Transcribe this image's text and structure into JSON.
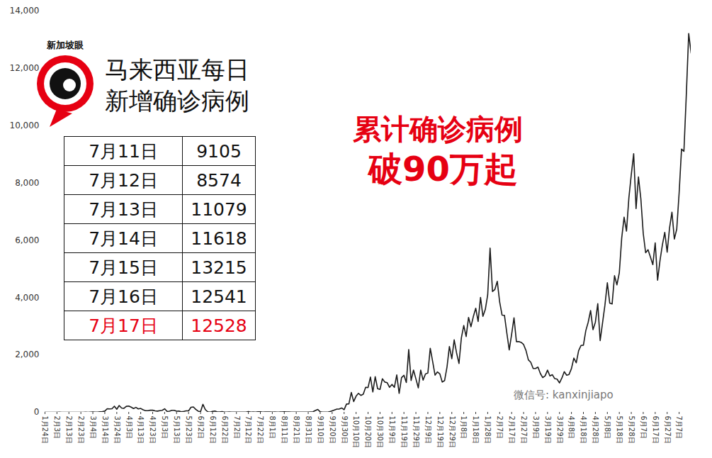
{
  "chart_data": {
    "type": "line",
    "title": "马来西亚每日新增确诊病例",
    "annotations": [
      "累计确诊病例",
      "破90万起"
    ],
    "logo": "新加坡眼",
    "watermark": "微信号: kanxinjiapo",
    "color": "#1a1a1a",
    "grid": false,
    "ylim": [
      0,
      14000
    ],
    "yticks": [
      0,
      2000,
      4000,
      6000,
      8000,
      10000,
      12000,
      14000
    ],
    "categories": [
      "1月24日",
      null,
      null,
      null,
      null,
      "2月3日",
      null,
      null,
      null,
      null,
      "2月13日",
      null,
      null,
      null,
      null,
      "2月23日",
      null,
      null,
      null,
      null,
      "3月4日",
      null,
      null,
      null,
      null,
      "3月14日",
      null,
      null,
      null,
      null,
      "3月24日",
      null,
      null,
      null,
      null,
      "4月3日",
      null,
      null,
      null,
      null,
      "4月13日",
      null,
      null,
      null,
      null,
      "4月23日",
      null,
      null,
      null,
      null,
      "5月3日",
      null,
      null,
      null,
      null,
      "5月13日",
      null,
      null,
      null,
      null,
      "5月23日",
      null,
      null,
      null,
      null,
      "6月2日",
      null,
      null,
      null,
      null,
      "6月12日",
      null,
      null,
      null,
      null,
      "6月22日",
      null,
      null,
      null,
      null,
      "7月2日",
      null,
      null,
      null,
      null,
      "7月12日",
      null,
      null,
      null,
      null,
      "7月22日",
      null,
      null,
      null,
      null,
      "8月1日",
      null,
      null,
      null,
      null,
      "8月11日",
      null,
      null,
      null,
      null,
      "8月21日",
      null,
      null,
      null,
      null,
      "8月31日",
      null,
      null,
      null,
      null,
      "9月10日",
      null,
      null,
      null,
      null,
      "9月20日",
      null,
      null,
      null,
      null,
      "9月30日",
      null,
      null,
      null,
      null,
      "10月10日",
      null,
      null,
      null,
      null,
      "10月20日",
      null,
      null,
      null,
      null,
      "10月30日",
      null,
      null,
      null,
      null,
      "11月9日",
      null,
      null,
      null,
      null,
      "11月19日",
      null,
      null,
      null,
      null,
      "11月29日",
      null,
      null,
      null,
      null,
      "12月9日",
      null,
      null,
      null,
      null,
      "12月19日",
      null,
      null,
      null,
      null,
      "12月29日",
      null,
      null,
      null,
      null,
      "1月8日",
      null,
      null,
      null,
      null,
      "1月18日",
      null,
      null,
      null,
      null,
      "1月28日",
      null,
      null,
      null,
      null,
      "2月7日",
      null,
      null,
      null,
      null,
      "2月17日",
      null,
      null,
      null,
      null,
      "2月27日",
      null,
      null,
      null,
      null,
      "3月9日",
      null,
      null,
      null,
      null,
      "3月19日",
      null,
      null,
      null,
      null,
      "3月29日",
      null,
      null,
      null,
      null,
      "4月8日",
      null,
      null,
      null,
      null,
      "4月18日",
      null,
      null,
      null,
      null,
      "4月28日",
      null,
      null,
      null,
      null,
      "5月8日",
      null,
      null,
      null,
      null,
      "5月18日",
      null,
      null,
      null,
      null,
      "5月28日",
      null,
      null,
      null,
      null,
      "6月7日",
      null,
      null,
      null,
      null,
      "6月17日",
      null,
      null,
      null,
      null,
      "6月27日",
      null,
      null,
      null,
      null,
      "7月7日",
      null,
      null,
      null,
      null,
      null
    ],
    "values": [
      0,
      0,
      1,
      0,
      0,
      0,
      2,
      0,
      0,
      0,
      1,
      0,
      0,
      0,
      0,
      0,
      0,
      3,
      1,
      7,
      14,
      5,
      7,
      20,
      26,
      41,
      125,
      117,
      123,
      212,
      106,
      235,
      150,
      140,
      208,
      217,
      179,
      131,
      170,
      118,
      134,
      85,
      54,
      57,
      71,
      71,
      51,
      40,
      57,
      69,
      122,
      30,
      39,
      68,
      67,
      37,
      40,
      17,
      31,
      50,
      48,
      172,
      187,
      103,
      38,
      20,
      277,
      93,
      19,
      7,
      31,
      41,
      10,
      10,
      21,
      6,
      4,
      9,
      6,
      3,
      3,
      8,
      5,
      2,
      4,
      23,
      7,
      10,
      5,
      20,
      15,
      6,
      9,
      11,
      9,
      3,
      9,
      7,
      9,
      14,
      17,
      12,
      12,
      8,
      5,
      6,
      3,
      7,
      5,
      7,
      6,
      13,
      19,
      62,
      100,
      16,
      4,
      7,
      2,
      21,
      52,
      82,
      111,
      115,
      150,
      89,
      287,
      293,
      691,
      374,
      561,
      660,
      589,
      629,
      871,
      862,
      1228,
      710,
      1240,
      823,
      799,
      1168,
      1054,
      1032,
      869,
      972,
      869,
      1304,
      660,
      1208,
      1290,
      1041,
      2188,
      1109,
      1472,
      1166,
      851,
      1472,
      1123,
      1335,
      1370,
      2234,
      1772,
      1295,
      1409,
      1340,
      1054,
      1108,
      1581,
      2295,
      1870,
      2525,
      2068,
      1704,
      2593,
      3027,
      2643,
      3309,
      2985,
      3337,
      3631,
      3170,
      4008,
      3346,
      3585,
      4094,
      5728,
      4214,
      4284,
      4571,
      3847,
      3390,
      3384,
      2764,
      2176,
      2720,
      3297,
      2464,
      2468,
      2437,
      2364,
      2154,
      1828,
      1745,
      1529,
      1529,
      1575,
      1354,
      1208,
      1271,
      1469,
      1268,
      1312,
      1173,
      1156,
      1025,
      1195,
      1416,
      1291,
      1319,
      1525,
      1889,
      1725,
      2148,
      2331,
      2340,
      2847,
      3142,
      3551,
      2881,
      3142,
      3788,
      2500,
      3120,
      3744,
      4519,
      3807,
      3780,
      4765,
      4446,
      4865,
      6075,
      6806,
      6320,
      7478,
      8290,
      9020,
      7105,
      8209,
      7452,
      6239,
      5566,
      5671,
      5419,
      5150,
      5911,
      4611,
      5291,
      5841,
      6276,
      5586,
      6437,
      6982,
      6045,
      6387,
      7654,
      9180,
      9105,
      11079,
      13215,
      12528
    ],
    "table": {
      "rows": [
        {
          "date": "7月11日",
          "value": 9105,
          "color": "#111111"
        },
        {
          "date": "7月12日",
          "value": 8574,
          "color": "#111111"
        },
        {
          "date": "7月13日",
          "value": 11079,
          "color": "#111111"
        },
        {
          "date": "7月14日",
          "value": 11618,
          "color": "#111111"
        },
        {
          "date": "7月15日",
          "value": 13215,
          "color": "#111111"
        },
        {
          "date": "7月16日",
          "value": 12541,
          "color": "#111111"
        },
        {
          "date": "7月17日",
          "value": 12528,
          "color": "#e60012"
        }
      ]
    }
  }
}
